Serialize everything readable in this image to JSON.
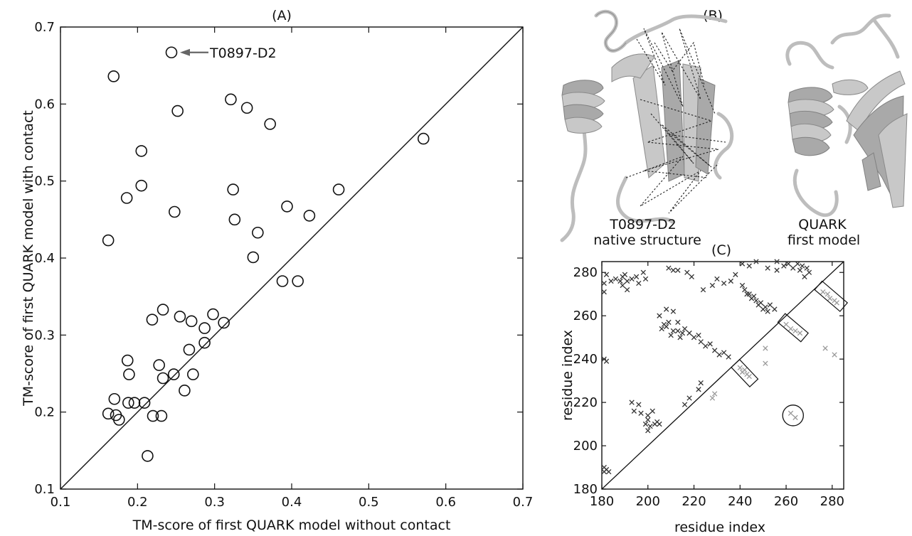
{
  "chart_data": [
    {
      "panel": "(A)",
      "type": "scatter",
      "xlabel": "TM-score of first QUARK model without contact",
      "ylabel": "TM-score of first QUARK model with contact",
      "xlim": [
        0.1,
        0.7
      ],
      "ylim": [
        0.1,
        0.7
      ],
      "xticks": [
        "0.1",
        "0.2",
        "0.3",
        "0.4",
        "0.5",
        "0.6",
        "0.7"
      ],
      "yticks": [
        "0.1",
        "0.2",
        "0.3",
        "0.4",
        "0.5",
        "0.6",
        "0.7"
      ],
      "diagonal": true,
      "annotation": {
        "text": "T0897-D2",
        "x": 0.244,
        "y": 0.667
      },
      "points": [
        [
          0.244,
          0.667
        ],
        [
          0.169,
          0.636
        ],
        [
          0.252,
          0.591
        ],
        [
          0.321,
          0.606
        ],
        [
          0.342,
          0.595
        ],
        [
          0.372,
          0.574
        ],
        [
          0.571,
          0.555
        ],
        [
          0.205,
          0.539
        ],
        [
          0.205,
          0.494
        ],
        [
          0.186,
          0.478
        ],
        [
          0.248,
          0.46
        ],
        [
          0.324,
          0.489
        ],
        [
          0.461,
          0.489
        ],
        [
          0.394,
          0.467
        ],
        [
          0.423,
          0.455
        ],
        [
          0.326,
          0.45
        ],
        [
          0.356,
          0.433
        ],
        [
          0.162,
          0.423
        ],
        [
          0.35,
          0.401
        ],
        [
          0.388,
          0.37
        ],
        [
          0.408,
          0.37
        ],
        [
          0.233,
          0.333
        ],
        [
          0.219,
          0.32
        ],
        [
          0.255,
          0.324
        ],
        [
          0.298,
          0.327
        ],
        [
          0.27,
          0.318
        ],
        [
          0.312,
          0.316
        ],
        [
          0.287,
          0.309
        ],
        [
          0.267,
          0.281
        ],
        [
          0.287,
          0.29
        ],
        [
          0.187,
          0.267
        ],
        [
          0.228,
          0.261
        ],
        [
          0.189,
          0.249
        ],
        [
          0.247,
          0.249
        ],
        [
          0.272,
          0.249
        ],
        [
          0.233,
          0.244
        ],
        [
          0.261,
          0.228
        ],
        [
          0.17,
          0.217
        ],
        [
          0.188,
          0.212
        ],
        [
          0.196,
          0.212
        ],
        [
          0.209,
          0.212
        ],
        [
          0.162,
          0.198
        ],
        [
          0.172,
          0.196
        ],
        [
          0.22,
          0.195
        ],
        [
          0.231,
          0.195
        ],
        [
          0.176,
          0.19
        ],
        [
          0.213,
          0.143
        ]
      ]
    },
    {
      "panel": "(C)",
      "type": "scatter",
      "xlabel": "residue index",
      "ylabel": "residue index",
      "xlim": [
        180,
        285
      ],
      "ylim": [
        180,
        285
      ],
      "xticks": [
        "180",
        "200",
        "220",
        "240",
        "260",
        "280"
      ],
      "yticks": [
        "180",
        "200",
        "220",
        "240",
        "260",
        "280"
      ],
      "diagonal": true,
      "marker": "x",
      "dark_series": {
        "name": "",
        "points": [
          [
            181,
            190
          ],
          [
            182,
            189
          ],
          [
            181,
            188
          ],
          [
            183,
            188
          ],
          [
            181,
            240
          ],
          [
            182,
            239
          ],
          [
            181,
            271
          ],
          [
            181,
            275
          ],
          [
            182,
            279
          ],
          [
            186,
            277
          ],
          [
            188,
            276
          ],
          [
            189,
            274
          ],
          [
            190,
            279
          ],
          [
            191,
            272
          ],
          [
            193,
            277
          ],
          [
            195,
            278
          ],
          [
            196,
            275
          ],
          [
            198,
            280
          ],
          [
            199,
            277
          ],
          [
            191,
            276
          ],
          [
            189,
            278
          ],
          [
            184,
            276
          ],
          [
            193,
            220
          ],
          [
            194,
            216
          ],
          [
            196,
            219
          ],
          [
            197,
            215
          ],
          [
            200,
            214
          ],
          [
            202,
            216
          ],
          [
            199,
            210
          ],
          [
            200,
            212
          ],
          [
            201,
            209
          ],
          [
            203,
            210
          ],
          [
            204,
            211
          ],
          [
            205,
            210
          ],
          [
            200,
            207
          ],
          [
            209,
            282
          ],
          [
            211,
            281
          ],
          [
            213,
            281
          ],
          [
            217,
            280
          ],
          [
            219,
            278
          ],
          [
            205,
            260
          ],
          [
            207,
            256
          ],
          [
            206,
            254
          ],
          [
            208,
            255
          ],
          [
            209,
            257
          ],
          [
            211,
            253
          ],
          [
            210,
            251
          ],
          [
            213,
            253
          ],
          [
            215,
            252
          ],
          [
            214,
            250
          ],
          [
            216,
            254
          ],
          [
            208,
            263
          ],
          [
            211,
            262
          ],
          [
            213,
            257
          ],
          [
            218,
            252
          ],
          [
            220,
            250
          ],
          [
            222,
            251
          ],
          [
            216,
            219
          ],
          [
            218,
            222
          ],
          [
            222,
            226
          ],
          [
            223,
            229
          ],
          [
            223,
            248
          ],
          [
            225,
            246
          ],
          [
            227,
            247
          ],
          [
            229,
            244
          ],
          [
            231,
            242
          ],
          [
            233,
            243
          ],
          [
            235,
            241
          ],
          [
            224,
            272
          ],
          [
            228,
            274
          ],
          [
            230,
            277
          ],
          [
            233,
            275
          ],
          [
            236,
            276
          ],
          [
            238,
            279
          ],
          [
            241,
            274
          ],
          [
            242,
            272
          ],
          [
            243,
            270
          ],
          [
            245,
            268
          ],
          [
            247,
            267
          ],
          [
            249,
            266
          ],
          [
            251,
            264
          ],
          [
            253,
            265
          ],
          [
            255,
            263
          ],
          [
            244,
            270
          ],
          [
            246,
            269
          ],
          [
            248,
            265
          ],
          [
            250,
            263
          ],
          [
            252,
            262
          ],
          [
            244,
            283
          ],
          [
            247,
            285
          ],
          [
            252,
            282
          ],
          [
            256,
            281
          ],
          [
            259,
            283
          ],
          [
            261,
            284
          ],
          [
            263,
            282
          ],
          [
            265,
            284
          ],
          [
            267,
            283
          ],
          [
            269,
            282
          ],
          [
            270,
            280
          ],
          [
            241,
            284
          ],
          [
            256,
            285
          ],
          [
            266,
            281
          ],
          [
            268,
            278
          ]
        ]
      },
      "light_series": {
        "name": "",
        "points": [
          [
            240,
            236
          ],
          [
            241,
            234
          ],
          [
            242,
            235
          ],
          [
            243,
            233
          ],
          [
            244,
            232
          ],
          [
            260,
            256
          ],
          [
            262,
            254
          ],
          [
            264,
            253
          ],
          [
            266,
            252
          ],
          [
            276,
            271
          ],
          [
            278,
            270
          ],
          [
            279,
            268
          ],
          [
            281,
            267
          ],
          [
            282,
            266
          ],
          [
            251,
            245
          ],
          [
            251,
            238
          ],
          [
            228,
            222
          ],
          [
            229,
            224
          ],
          [
            262,
            215
          ],
          [
            264,
            213
          ],
          [
            277,
            245
          ],
          [
            281,
            242
          ]
        ]
      },
      "boxes": [
        {
          "from": [
            238,
            238
          ],
          "to": [
            246,
            229
          ]
        },
        {
          "from": [
            258,
            259
          ],
          "to": [
            268,
            250
          ]
        },
        {
          "from": [
            274,
            274
          ],
          "to": [
            285,
            264
          ]
        }
      ],
      "circle": {
        "x": 263,
        "y": 214,
        "r": 4.5
      }
    }
  ],
  "panel_b": {
    "label": "(B)",
    "native_caption_1": "T0897-D2",
    "native_caption_2": "native structure",
    "model_caption_1": "QUARK",
    "model_caption_2": "first model"
  }
}
